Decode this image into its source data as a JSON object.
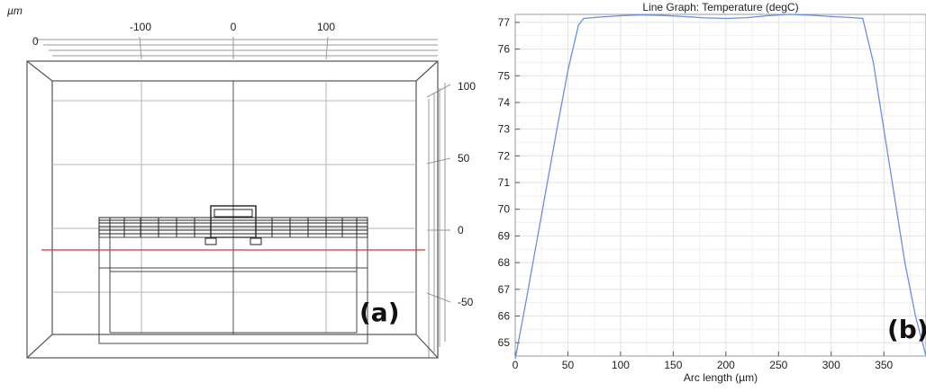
{
  "chart_data": [
    {
      "type": "diagram",
      "unit_label": "µm",
      "x_ticks": [
        {
          "value": -100,
          "label": "-100"
        },
        {
          "value": 0,
          "label": "0"
        },
        {
          "value": 100,
          "label": "100"
        }
      ],
      "back_axis_label": "0",
      "z_ticks": [
        {
          "value": 100,
          "label": "100"
        },
        {
          "value": 50,
          "label": "50"
        },
        {
          "value": 0,
          "label": "0"
        },
        {
          "value": -50,
          "label": "-50"
        }
      ],
      "panel_label": "(a)",
      "cut_line_color": "#e03030"
    },
    {
      "type": "line",
      "title": "Line Graph: Temperature (degC)",
      "xlabel": "Arc length (µm)",
      "ylabel": "",
      "xlim": [
        0,
        390
      ],
      "ylim": [
        64.5,
        77.3
      ],
      "x_ticks": [
        0,
        50,
        100,
        150,
        200,
        250,
        300,
        350
      ],
      "y_ticks": [
        65,
        66,
        67,
        68,
        69,
        70,
        71,
        72,
        73,
        74,
        75,
        76,
        77
      ],
      "grid": true,
      "series_color": "#6a8ee8",
      "x": [
        0,
        10,
        20,
        30,
        40,
        50,
        60,
        65,
        80,
        100,
        120,
        140,
        160,
        180,
        200,
        220,
        240,
        260,
        280,
        300,
        320,
        330,
        340,
        350,
        360,
        370,
        380,
        390
      ],
      "y": [
        64.4,
        66.5,
        68.7,
        70.9,
        73.1,
        75.2,
        76.9,
        77.15,
        77.2,
        77.25,
        77.28,
        77.26,
        77.22,
        77.17,
        77.15,
        77.18,
        77.25,
        77.3,
        77.27,
        77.22,
        77.18,
        77.15,
        75.5,
        73.0,
        70.5,
        68.0,
        66.0,
        64.5
      ],
      "panel_label": "(b)"
    }
  ]
}
